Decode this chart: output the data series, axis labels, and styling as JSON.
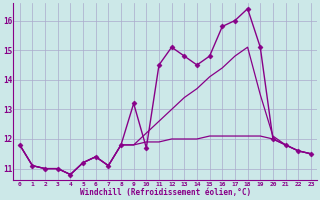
{
  "background_color": "#cce8e8",
  "grid_color": "#aaaacc",
  "line_color": "#880088",
  "xlim": [
    -0.5,
    23.5
  ],
  "ylim": [
    10.6,
    16.6
  ],
  "yticks": [
    11,
    12,
    13,
    14,
    15,
    16
  ],
  "xticks": [
    0,
    1,
    2,
    3,
    4,
    5,
    6,
    7,
    8,
    9,
    10,
    11,
    12,
    13,
    14,
    15,
    16,
    17,
    18,
    19,
    20,
    21,
    22,
    23
  ],
  "xlabel": "Windchill (Refroidissement éolien,°C)",
  "series": [
    {
      "x": [
        0,
        1,
        2,
        3,
        4,
        5,
        6,
        7,
        8,
        9,
        10,
        11,
        12,
        13,
        14,
        15,
        16,
        17,
        18,
        19,
        20,
        21,
        22,
        23
      ],
      "y": [
        11.8,
        11.1,
        11.0,
        11.0,
        10.8,
        11.2,
        11.4,
        11.1,
        11.8,
        13.2,
        11.7,
        14.5,
        15.1,
        14.8,
        14.5,
        14.8,
        15.8,
        16.0,
        16.4,
        15.1,
        12.0,
        11.8,
        11.6,
        11.5
      ],
      "style": "-",
      "marker": "D",
      "markersize": 2.5,
      "linewidth": 1.0
    },
    {
      "x": [
        0,
        1,
        2,
        3,
        4,
        5,
        6,
        7,
        8,
        9,
        10,
        11,
        12,
        13,
        14,
        15,
        16,
        17,
        18,
        19,
        20,
        21,
        22,
        23
      ],
      "y": [
        11.8,
        11.1,
        11.0,
        11.0,
        10.8,
        11.2,
        11.4,
        11.1,
        11.8,
        11.8,
        12.2,
        12.6,
        13.0,
        13.4,
        13.7,
        14.1,
        14.4,
        14.8,
        15.1,
        13.5,
        12.1,
        11.8,
        11.6,
        11.5
      ],
      "style": "-",
      "marker": null,
      "markersize": 0,
      "linewidth": 0.9
    },
    {
      "x": [
        0,
        1,
        2,
        3,
        4,
        5,
        6,
        7,
        8,
        9,
        10,
        11,
        12,
        13,
        14,
        15,
        16,
        17,
        18,
        19,
        20,
        21,
        22,
        23
      ],
      "y": [
        11.8,
        11.1,
        11.0,
        11.0,
        10.8,
        11.2,
        11.4,
        11.1,
        11.8,
        11.8,
        11.9,
        11.9,
        12.0,
        12.0,
        12.0,
        12.1,
        12.1,
        12.1,
        12.1,
        12.1,
        12.0,
        11.8,
        11.6,
        11.5
      ],
      "style": "-",
      "marker": null,
      "markersize": 0,
      "linewidth": 0.9
    }
  ]
}
